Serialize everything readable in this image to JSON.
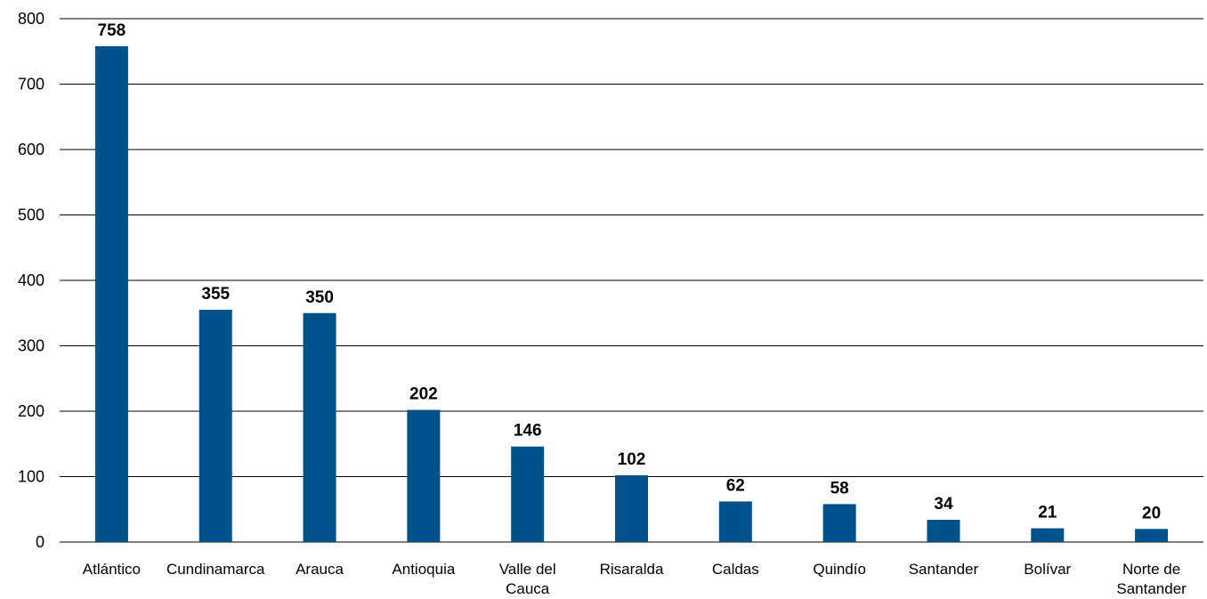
{
  "chart_data": {
    "type": "bar",
    "categories": [
      "Atlántico",
      "Cundinamarca",
      "Arauca",
      "Antioquia",
      "Valle del Cauca",
      "Risaralda",
      "Caldas",
      "Quindío",
      "Santander",
      "Bolívar",
      "Norte de Santander"
    ],
    "category_lines": [
      [
        "Atlántico"
      ],
      [
        "Cundinamarca"
      ],
      [
        "Arauca"
      ],
      [
        "Antioquia"
      ],
      [
        "Valle del",
        "Cauca"
      ],
      [
        "Risaralda"
      ],
      [
        "Caldas"
      ],
      [
        "Quindío"
      ],
      [
        "Santander"
      ],
      [
        "Bolívar"
      ],
      [
        "Norte de",
        "Santander"
      ]
    ],
    "values": [
      758,
      355,
      350,
      202,
      146,
      102,
      62,
      58,
      34,
      21,
      20
    ],
    "title": "",
    "xlabel": "",
    "ylabel": "",
    "ylim": [
      0,
      800
    ],
    "yticks": [
      0,
      100,
      200,
      300,
      400,
      500,
      600,
      700,
      800
    ],
    "grid": true,
    "bar_color": "#00528A"
  }
}
